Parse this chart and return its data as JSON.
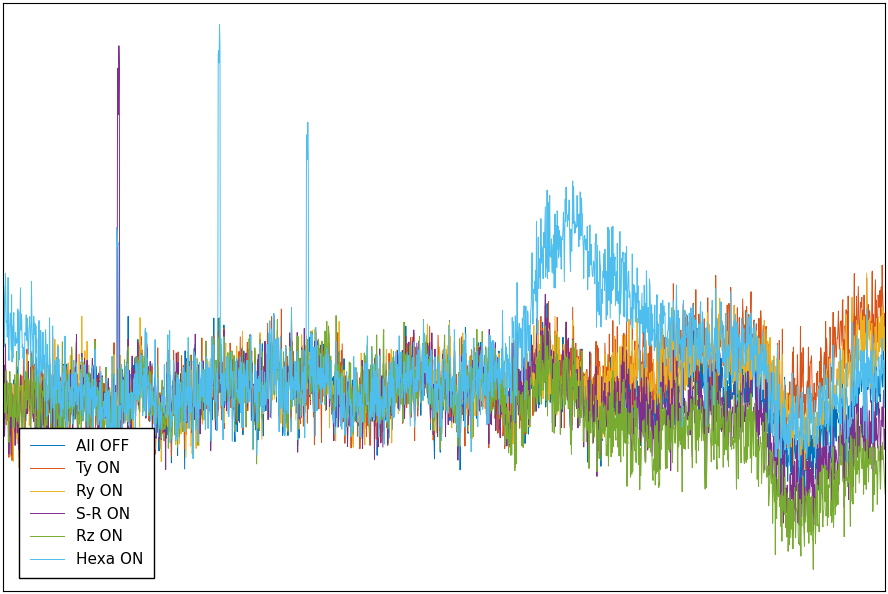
{
  "title": "",
  "xlabel": "",
  "ylabel": "",
  "legend_labels": [
    "All OFF",
    "Ty ON",
    "Ry ON",
    "S-R ON",
    "Rz ON",
    "Hexa ON"
  ],
  "colors": [
    "#0072BD",
    "#D95319",
    "#EDB120",
    "#7E2F8E",
    "#77AC30",
    "#4DBEEE"
  ],
  "linewidth": 0.7,
  "grid": true,
  "background_color": "#FFFFFF",
  "figsize": [
    8.88,
    5.94
  ],
  "dpi": 100,
  "n_points": 2000,
  "seed": 42
}
